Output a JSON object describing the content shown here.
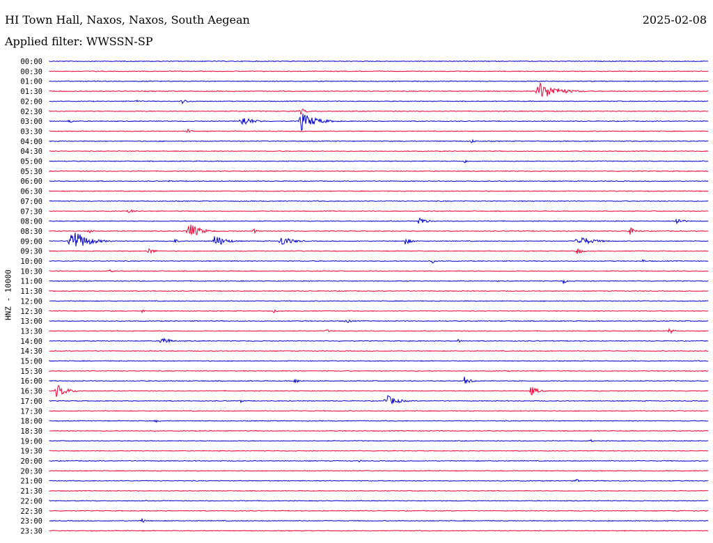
{
  "header": {
    "title": "HI Town Hall, Naxos, Naxos, South Aegean",
    "date": "2025-02-08",
    "filter": "Applied filter: WWSSN-SP"
  },
  "colors": {
    "line_a": "#0000cc",
    "line_b": "#ee0033",
    "text": "#000000"
  },
  "chart_data": {
    "type": "line",
    "ylabel": "HNZ - 10000",
    "tick_labels": [
      "00:00",
      "00:30",
      "01:00",
      "01:30",
      "02:00",
      "02:30",
      "03:00",
      "03:30",
      "04:00",
      "04:30",
      "05:00",
      "05:30",
      "06:00",
      "06:30",
      "07:00",
      "07:30",
      "08:00",
      "08:30",
      "09:00",
      "09:30",
      "10:00",
      "10:30",
      "11:00",
      "11:30",
      "12:00",
      "12:30",
      "13:00",
      "13:30",
      "14:00",
      "14:30",
      "15:00",
      "15:30",
      "16:00",
      "16:30",
      "17:00",
      "17:30",
      "18:00",
      "18:30",
      "19:00",
      "19:30",
      "20:00",
      "20:30",
      "21:00",
      "21:30",
      "22:00",
      "22:30",
      "23:00",
      "23:30"
    ],
    "events": [
      {
        "row": 1,
        "x": 0.07,
        "amp": 2,
        "dur": 0.005
      },
      {
        "row": 3,
        "x": 0.74,
        "amp": 15,
        "dur": 0.05
      },
      {
        "row": 4,
        "x": 0.2,
        "amp": 4,
        "dur": 0.02
      },
      {
        "row": 4,
        "x": 0.13,
        "amp": 2,
        "dur": 0.02
      },
      {
        "row": 5,
        "x": 0.38,
        "amp": 6,
        "dur": 0.015
      },
      {
        "row": 6,
        "x": 0.29,
        "amp": 9,
        "dur": 0.03
      },
      {
        "row": 6,
        "x": 0.38,
        "amp": 15,
        "dur": 0.04
      },
      {
        "row": 6,
        "x": 0.03,
        "amp": 4,
        "dur": 0.01
      },
      {
        "row": 7,
        "x": 0.21,
        "amp": 5,
        "dur": 0.01
      },
      {
        "row": 8,
        "x": 0.64,
        "amp": 4,
        "dur": 0.01
      },
      {
        "row": 10,
        "x": 0.63,
        "amp": 3,
        "dur": 0.01
      },
      {
        "row": 10,
        "x": 0.7,
        "amp": 2,
        "dur": 0.01
      },
      {
        "row": 12,
        "x": 0.18,
        "amp": 2,
        "dur": 0.01
      },
      {
        "row": 15,
        "x": 0.12,
        "amp": 4,
        "dur": 0.015
      },
      {
        "row": 16,
        "x": 0.56,
        "amp": 7,
        "dur": 0.02
      },
      {
        "row": 16,
        "x": 0.95,
        "amp": 6,
        "dur": 0.02
      },
      {
        "row": 17,
        "x": 0.21,
        "amp": 14,
        "dur": 0.03
      },
      {
        "row": 17,
        "x": 0.06,
        "amp": 4,
        "dur": 0.01
      },
      {
        "row": 17,
        "x": 0.31,
        "amp": 5,
        "dur": 0.01
      },
      {
        "row": 17,
        "x": 0.88,
        "amp": 6,
        "dur": 0.02
      },
      {
        "row": 18,
        "x": 0.03,
        "amp": 22,
        "dur": 0.04
      },
      {
        "row": 18,
        "x": 0.25,
        "amp": 10,
        "dur": 0.03
      },
      {
        "row": 18,
        "x": 0.35,
        "amp": 9,
        "dur": 0.03
      },
      {
        "row": 18,
        "x": 0.54,
        "amp": 5,
        "dur": 0.02
      },
      {
        "row": 18,
        "x": 0.8,
        "amp": 9,
        "dur": 0.04
      },
      {
        "row": 18,
        "x": 0.19,
        "amp": 4,
        "dur": 0.01
      },
      {
        "row": 19,
        "x": 0.15,
        "amp": 6,
        "dur": 0.015
      },
      {
        "row": 19,
        "x": 0.8,
        "amp": 6,
        "dur": 0.015
      },
      {
        "row": 20,
        "x": 0.58,
        "amp": 4,
        "dur": 0.01
      },
      {
        "row": 20,
        "x": 0.9,
        "amp": 3,
        "dur": 0.01
      },
      {
        "row": 21,
        "x": 0.09,
        "amp": 3,
        "dur": 0.01
      },
      {
        "row": 22,
        "x": 0.78,
        "amp": 4,
        "dur": 0.01
      },
      {
        "row": 25,
        "x": 0.14,
        "amp": 3,
        "dur": 0.01
      },
      {
        "row": 25,
        "x": 0.34,
        "amp": 3,
        "dur": 0.01
      },
      {
        "row": 26,
        "x": 0.45,
        "amp": 4,
        "dur": 0.015
      },
      {
        "row": 27,
        "x": 0.42,
        "amp": 3,
        "dur": 0.01
      },
      {
        "row": 27,
        "x": 0.94,
        "amp": 5,
        "dur": 0.015
      },
      {
        "row": 28,
        "x": 0.17,
        "amp": 8,
        "dur": 0.02
      },
      {
        "row": 28,
        "x": 0.62,
        "amp": 3,
        "dur": 0.01
      },
      {
        "row": 32,
        "x": 0.37,
        "amp": 5,
        "dur": 0.015
      },
      {
        "row": 32,
        "x": 0.63,
        "amp": 6,
        "dur": 0.02
      },
      {
        "row": 33,
        "x": 0.01,
        "amp": 10,
        "dur": 0.03
      },
      {
        "row": 33,
        "x": 0.73,
        "amp": 8,
        "dur": 0.02
      },
      {
        "row": 34,
        "x": 0.51,
        "amp": 10,
        "dur": 0.03
      },
      {
        "row": 34,
        "x": 0.29,
        "amp": 3,
        "dur": 0.01
      },
      {
        "row": 36,
        "x": 0.16,
        "amp": 3,
        "dur": 0.01
      },
      {
        "row": 38,
        "x": 0.82,
        "amp": 3,
        "dur": 0.01
      },
      {
        "row": 40,
        "x": 0.47,
        "amp": 2,
        "dur": 0.01
      },
      {
        "row": 42,
        "x": 0.8,
        "amp": 3,
        "dur": 0.01
      },
      {
        "row": 46,
        "x": 0.14,
        "amp": 4,
        "dur": 0.01
      }
    ]
  }
}
